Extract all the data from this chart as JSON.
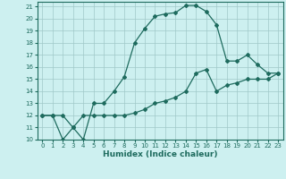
{
  "xlabel": "Humidex (Indice chaleur)",
  "background_color": "#cdf0f0",
  "grid_color": "#a0c8c8",
  "line_color": "#1e6b5e",
  "spine_color": "#1e6b5e",
  "xlim": [
    -0.5,
    23.5
  ],
  "ylim": [
    10,
    21.4
  ],
  "xticks": [
    0,
    1,
    2,
    3,
    4,
    5,
    6,
    7,
    8,
    9,
    10,
    11,
    12,
    13,
    14,
    15,
    16,
    17,
    18,
    19,
    20,
    21,
    22,
    23
  ],
  "yticks": [
    10,
    11,
    12,
    13,
    14,
    15,
    16,
    17,
    18,
    19,
    20,
    21
  ],
  "curve1_x": [
    0,
    1,
    2,
    3,
    4,
    5,
    6,
    7,
    8,
    9,
    10,
    11,
    12,
    13,
    14,
    15,
    16,
    17,
    18,
    19,
    20,
    21,
    22,
    23
  ],
  "curve1_y": [
    12,
    12,
    12,
    11,
    10,
    13,
    13,
    14,
    15.2,
    18.0,
    19.2,
    20.2,
    20.4,
    20.5,
    21.1,
    21.1,
    20.6,
    19.5,
    16.5,
    16.5,
    17.0,
    16.2,
    15.5,
    15.5
  ],
  "curve2_x": [
    0,
    1,
    2,
    3,
    4,
    5,
    6,
    7,
    8,
    9,
    10,
    11,
    12,
    13,
    14,
    15,
    16,
    17,
    18,
    19,
    20,
    21,
    22,
    23
  ],
  "curve2_y": [
    12,
    12,
    10,
    11,
    12,
    12,
    12,
    12,
    12,
    12.2,
    12.5,
    13.0,
    13.2,
    13.5,
    14.0,
    15.5,
    15.8,
    14.0,
    14.5,
    14.7,
    15.0,
    15.0,
    15.0,
    15.5
  ],
  "xlabel_fontsize": 6.5,
  "tick_fontsize": 5.0,
  "marker": "D",
  "markersize": 2.0,
  "linewidth": 0.9
}
